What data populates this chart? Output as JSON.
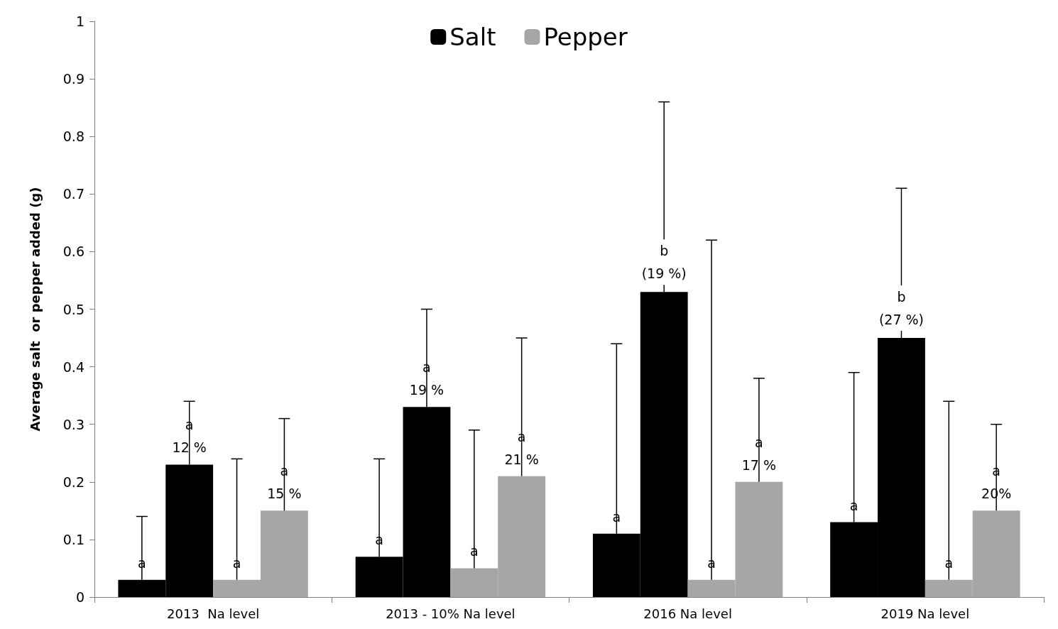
{
  "chart_data": {
    "type": "bar",
    "ylabel": "Average salt  or pepper added (g)",
    "categories": [
      "2013  Na level",
      "2013 - 10% Na level",
      "2016 Na level",
      "2019 Na level"
    ],
    "ylim": [
      0,
      1
    ],
    "yticks": [
      0,
      0.1,
      0.2,
      0.3,
      0.4,
      0.5,
      0.6,
      0.7,
      0.8,
      0.9,
      1
    ],
    "grid": false,
    "legend": "top",
    "series": [
      {
        "name": "Salt",
        "color": "#000000",
        "values": [
          0.03,
          0.07,
          0.11,
          0.13
        ],
        "errors": [
          [
            0.03,
            0.14
          ],
          [
            0.07,
            0.24
          ],
          [
            0.11,
            0.44
          ],
          [
            0.13,
            0.39
          ]
        ],
        "value_labels": [
          "a",
          "a",
          "a",
          "a"
        ]
      },
      {
        "color": "#000000",
        "values": [
          0.23,
          0.33,
          0.53,
          0.45
        ],
        "errors": [
          [
            0.23,
            0.34
          ],
          [
            0.33,
            0.5
          ],
          [
            0.53,
            0.86
          ],
          [
            0.45,
            0.71
          ]
        ],
        "value_labels": [
          "a\n12 %",
          "a\n19 %",
          null,
          null
        ]
      },
      {
        "name": "Pepper",
        "color": "#a6a6a6",
        "values": [
          0.03,
          0.05,
          0.03,
          0.03
        ],
        "errors": [
          [
            0.03,
            0.24
          ],
          [
            0.05,
            0.29
          ],
          [
            0.03,
            0.62
          ],
          [
            0.03,
            0.34
          ]
        ],
        "value_labels": [
          "a",
          "a",
          "a",
          "a"
        ]
      },
      {
        "color": "#a6a6a6",
        "values": [
          0.15,
          0.21,
          0.2,
          0.15
        ],
        "errors": [
          [
            0.15,
            0.31
          ],
          [
            0.21,
            0.45
          ],
          [
            0.2,
            0.38
          ],
          [
            0.15,
            0.3
          ]
        ],
        "value_labels": [
          "a\n15 %",
          "a\n21 %",
          "a\n17 %",
          "a\n20%"
        ]
      }
    ],
    "annotations": [
      {
        "text": "b\n(19 %)",
        "x": "2016 Na level",
        "y": 0.53
      },
      {
        "text": "b\n(27 %)",
        "x": "2019 Na level",
        "y": 0.45
      }
    ]
  }
}
